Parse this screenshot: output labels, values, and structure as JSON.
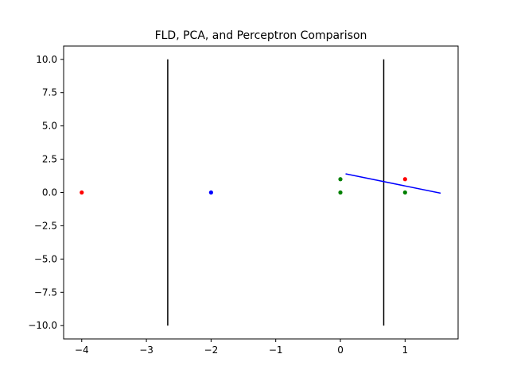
{
  "chart_data": {
    "type": "scatter",
    "title": "FLD, PCA, and Perceptron Comparison",
    "xlabel": "",
    "ylabel": "",
    "xlim": [
      -4.28,
      1.82
    ],
    "ylim": [
      -11,
      11
    ],
    "x_ticks": [
      -4,
      -3,
      -2,
      -1,
      0,
      1
    ],
    "x_tick_labels": [
      "−4",
      "−3",
      "−2",
      "−1",
      "0",
      "1"
    ],
    "y_ticks": [
      10.0,
      7.5,
      5.0,
      2.5,
      0.0,
      -2.5,
      -5.0,
      -7.5,
      -10.0
    ],
    "y_tick_labels": [
      "10.0",
      "7.5",
      "5.0",
      "2.5",
      "0.0",
      "−2.5",
      "−5.0",
      "−7.5",
      "−10.0"
    ],
    "grid": false,
    "legend": "none",
    "points": [
      {
        "x": -4,
        "y": 0,
        "color": "#ff0000"
      },
      {
        "x": 1,
        "y": 1,
        "color": "#ff0000"
      },
      {
        "x": -2,
        "y": 0,
        "color": "#0000ff"
      },
      {
        "x": 0,
        "y": 1,
        "color": "#008000"
      },
      {
        "x": 0,
        "y": 0,
        "color": "#008000"
      },
      {
        "x": 1,
        "y": 0,
        "color": "#008000"
      }
    ],
    "lines": [
      {
        "x": [
          -2.67,
          -2.67
        ],
        "y": [
          -10,
          10
        ],
        "color": "#000000"
      },
      {
        "x": [
          0.67,
          0.67
        ],
        "y": [
          -10,
          10
        ],
        "color": "#000000"
      },
      {
        "x": [
          0.08,
          1.55
        ],
        "y": [
          1.4,
          -0.05
        ],
        "color": "#0000ff"
      }
    ]
  }
}
